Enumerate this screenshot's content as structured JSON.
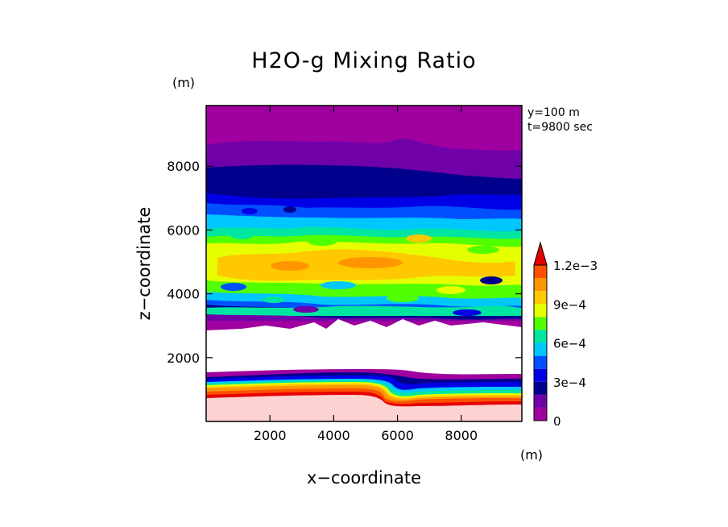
{
  "chart_data": {
    "type": "heatmap",
    "title": "H2O-g Mixing Ratio",
    "xlabel": "x−coordinate",
    "ylabel": "z−coordinate",
    "x_unit": "(m)",
    "y_unit": "(m)",
    "annotations": [
      "y=100 m",
      "t=9800 sec"
    ],
    "xlim": [
      0,
      9900
    ],
    "ylim": [
      0,
      9900
    ],
    "x_ticks": [
      2000,
      4000,
      6000,
      8000
    ],
    "y_ticks": [
      2000,
      4000,
      6000,
      8000
    ],
    "x_tick_labels": [
      "2000",
      "4000",
      "6000",
      "8000"
    ],
    "y_tick_labels": [
      "2000",
      "4000",
      "6000",
      "8000"
    ],
    "colorbar": {
      "levels": [
        0,
        0.0001,
        0.0002,
        0.0003,
        0.0004,
        0.0005,
        0.0006,
        0.0007,
        0.0008,
        0.0009,
        0.001,
        0.0011,
        0.0012
      ],
      "colors": [
        "#a000a0",
        "#7000a8",
        "#00008c",
        "#0000e6",
        "#0050ff",
        "#00c8ff",
        "#00e6a0",
        "#50ff00",
        "#e6ff00",
        "#ffc800",
        "#ff9600",
        "#ff5000",
        "#e60000",
        "#ffd2d2"
      ],
      "tick_labels": [
        "0",
        "3e−4",
        "6e−4",
        "9e−4",
        "1.2e−3"
      ],
      "tick_values": [
        0,
        0.0003,
        0.0006,
        0.0009,
        0.0012
      ],
      "extend": "max"
    },
    "series": [
      {
        "z_max": 700,
        "level": "above 1.2e-3"
      },
      {
        "z_max": 900,
        "level": "1.1e-3 to 1.2e-3"
      },
      {
        "z_max": 1150,
        "level": "6e-4 to 1e-3"
      },
      {
        "z_max": 1450,
        "level": "1e-4 to 5e-4"
      },
      {
        "z_max": 3000,
        "level": "no data"
      },
      {
        "z_max": 4000,
        "level": "1e-4 to 9e-4"
      },
      {
        "z_max": 5200,
        "level": "6e-4 to 1e-3"
      },
      {
        "z_max": 6500,
        "level": "3e-4 to 8e-4"
      },
      {
        "z_max": 8000,
        "level": "2e-4 to 4e-4"
      },
      {
        "z_max": 9900,
        "level": "0 to 2e-4"
      }
    ]
  }
}
